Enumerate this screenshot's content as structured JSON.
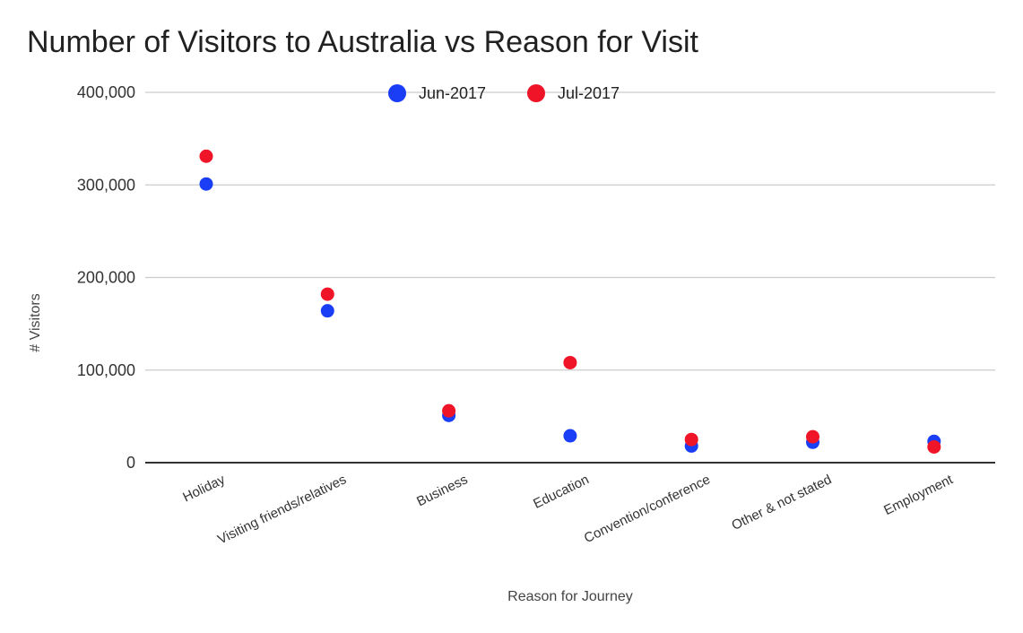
{
  "colors": {
    "jun": "#1a3ef5",
    "jul": "#f01428",
    "grid": "#cccccc",
    "axis": "#333333"
  },
  "chart_data": {
    "type": "scatter",
    "title": "Number of Visitors to Australia vs Reason for Visit",
    "xlabel": "Reason for Journey",
    "ylabel": "# Visitors",
    "ylim": [
      0,
      400000
    ],
    "yticks": [
      0,
      100000,
      200000,
      300000,
      400000
    ],
    "ytick_labels": [
      "0",
      "100,000",
      "200,000",
      "300,000",
      "400,000"
    ],
    "grid": true,
    "legend_position": "top",
    "categories": [
      "Holiday",
      "Visiting friends/relatives",
      "Business",
      "Education",
      "Convention/conference",
      "Other & not stated",
      "Employment"
    ],
    "series": [
      {
        "name": "Jun-2017",
        "color": "#1a3ef5",
        "values": [
          301000,
          164000,
          51000,
          29000,
          18000,
          22000,
          23000
        ]
      },
      {
        "name": "Jul-2017",
        "color": "#f01428",
        "values": [
          331000,
          182000,
          56000,
          108000,
          25000,
          28000,
          17000
        ]
      }
    ]
  }
}
